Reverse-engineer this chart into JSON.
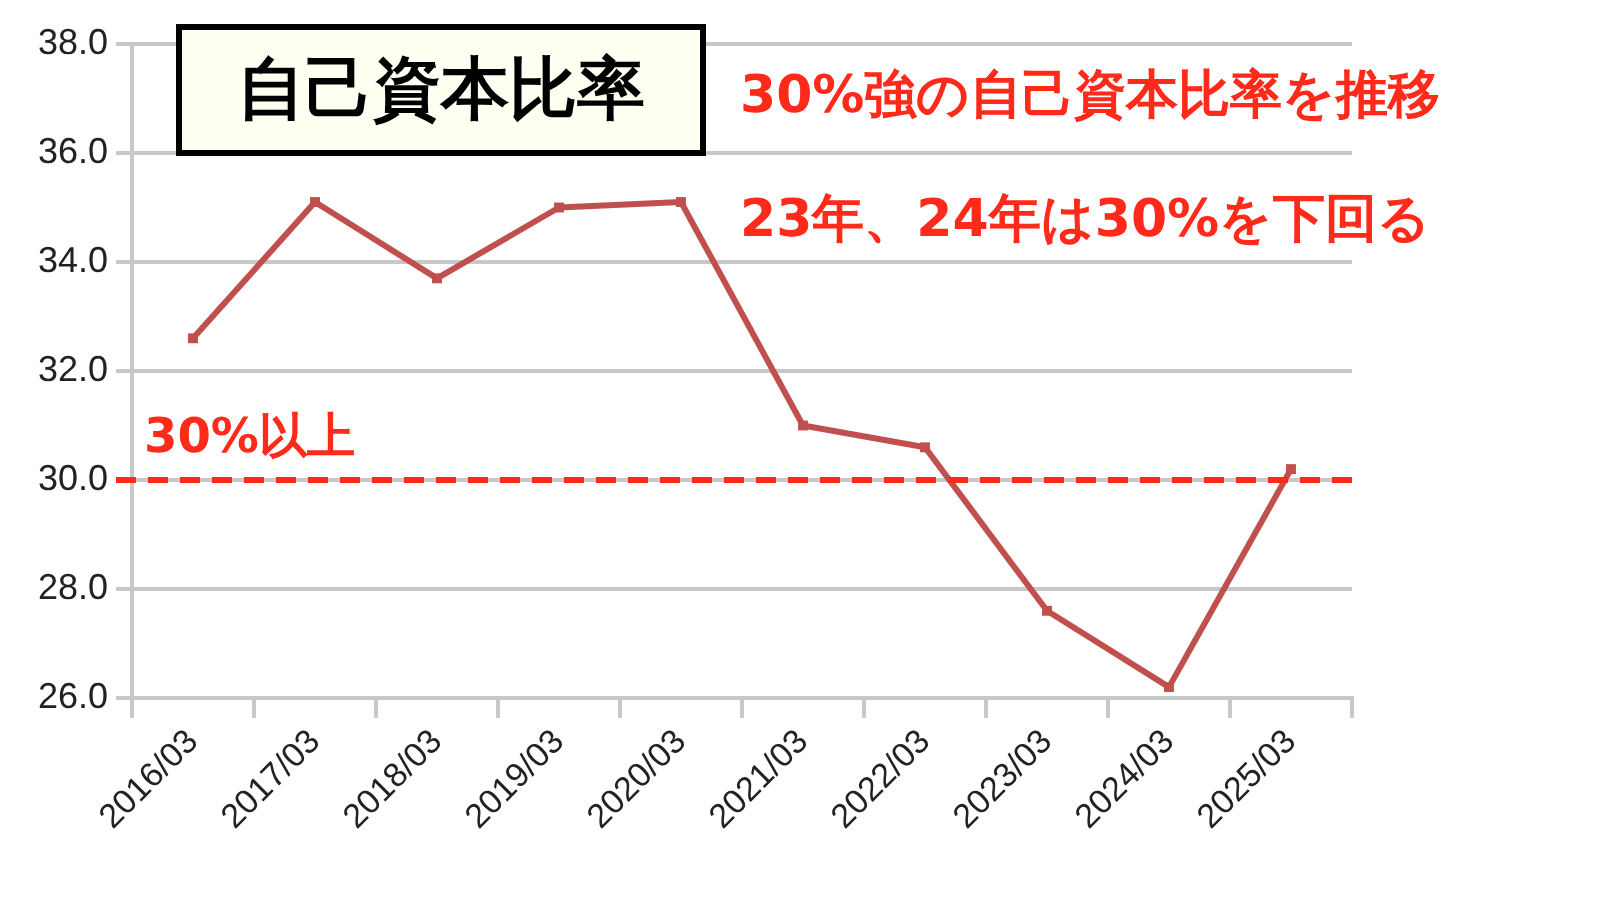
{
  "chart_data": {
    "type": "line",
    "title": "自己資本比率",
    "categories": [
      "2016/03",
      "2017/03",
      "2018/03",
      "2019/03",
      "2020/03",
      "2021/03",
      "2022/03",
      "2023/03",
      "2024/03",
      "2025/03"
    ],
    "series": [
      {
        "color": "#c0504d",
        "values": [
          32.6,
          35.1,
          33.7,
          35.0,
          35.1,
          31.0,
          30.6,
          27.6,
          26.2,
          30.2
        ]
      }
    ],
    "ylim": [
      26,
      38
    ],
    "yticks": [
      {
        "value": 26,
        "label": "26.0"
      },
      {
        "value": 28,
        "label": "28.0"
      },
      {
        "value": 30,
        "label": "30.0"
      },
      {
        "value": 32,
        "label": "32.0"
      },
      {
        "value": 34,
        "label": "34.0"
      },
      {
        "value": 36,
        "label": "36.0"
      },
      {
        "value": 38,
        "label": "38.0"
      }
    ],
    "grid": "y",
    "marker": "square",
    "line_style": "solid",
    "ref_lines": [
      {
        "axis": "y",
        "value": 30,
        "label": "30%以上",
        "color": "#ff2a1a",
        "line_style": "dashed"
      }
    ],
    "annotations": [
      "30%強の自己資本比率を推移",
      "23年、24年は30%を下回る"
    ]
  }
}
